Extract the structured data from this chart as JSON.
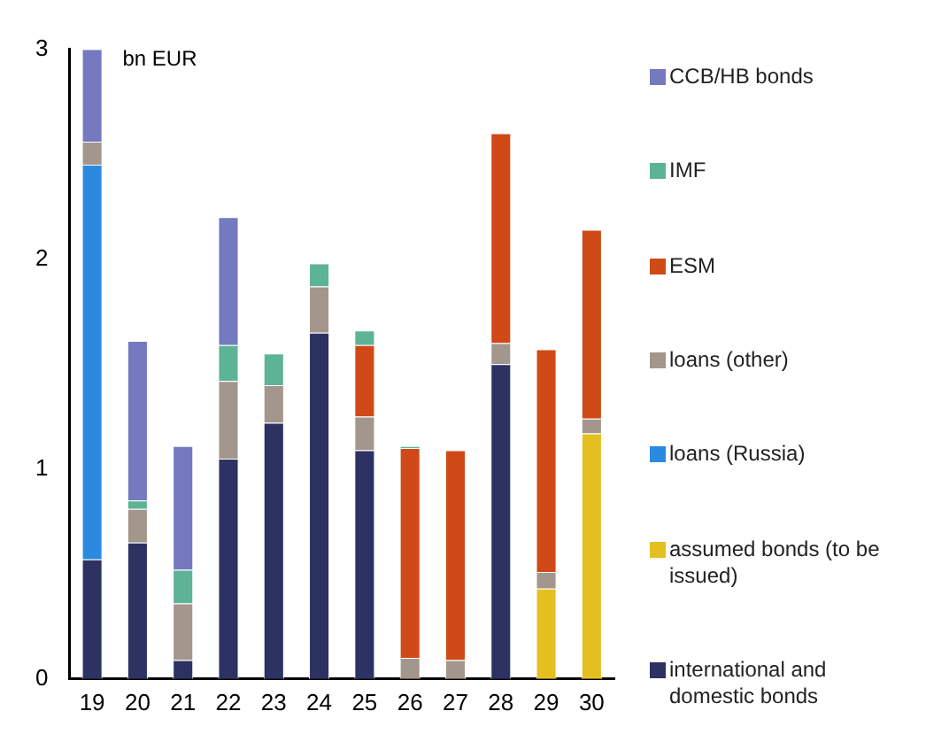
{
  "chart_data": {
    "type": "bar",
    "stacked": true,
    "ylabel": "bn EUR",
    "categories": [
      "19",
      "20",
      "21",
      "22",
      "23",
      "24",
      "25",
      "26",
      "27",
      "28",
      "29",
      "30"
    ],
    "ylim": [
      0,
      3
    ],
    "yticks": [
      0,
      1,
      2,
      3
    ],
    "grid": false,
    "legend": "right",
    "series": [
      {
        "name": "international and domestic bonds",
        "color": "#2d3263",
        "values": [
          0.57,
          0.65,
          0.09,
          1.05,
          1.22,
          1.65,
          1.09,
          null,
          null,
          1.5,
          null,
          null
        ]
      },
      {
        "name": "assumed bonds (to be issued)",
        "color": "#e4bf20",
        "values": [
          null,
          null,
          null,
          null,
          null,
          null,
          null,
          null,
          null,
          null,
          0.43,
          1.17
        ]
      },
      {
        "name": "loans (Russia)",
        "color": "#2b8ae0",
        "values": [
          1.88,
          null,
          null,
          null,
          null,
          null,
          null,
          null,
          null,
          null,
          null,
          null
        ]
      },
      {
        "name": "loans (other)",
        "color": "#a3968c",
        "values": [
          0.11,
          0.16,
          0.27,
          0.37,
          0.18,
          0.22,
          0.16,
          0.1,
          0.09,
          0.1,
          0.08,
          0.07
        ]
      },
      {
        "name": "ESM",
        "color": "#cf4a17",
        "values": [
          null,
          null,
          null,
          null,
          null,
          null,
          0.34,
          1.0,
          1.0,
          1.0,
          1.06,
          0.9
        ]
      },
      {
        "name": "IMF",
        "color": "#5db396",
        "values": [
          null,
          0.04,
          0.16,
          0.17,
          0.15,
          0.11,
          0.07,
          0.01,
          null,
          null,
          null,
          null
        ]
      },
      {
        "name": "CCB/HB bonds",
        "color": "#7479c0",
        "values": [
          0.44,
          0.76,
          0.59,
          0.61,
          null,
          null,
          null,
          null,
          null,
          null,
          null,
          null
        ]
      }
    ]
  }
}
